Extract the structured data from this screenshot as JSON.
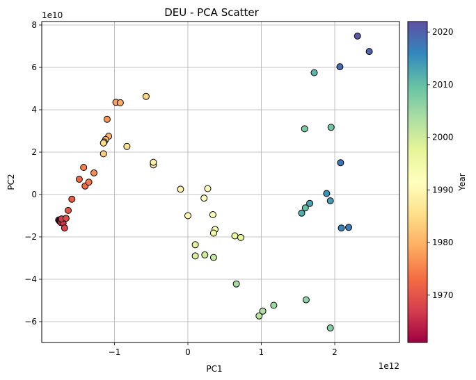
{
  "chart_data": {
    "type": "scatter",
    "title": "DEU - PCA Scatter",
    "xlabel": "PC1",
    "ylabel": "PC2",
    "x_offset_text": "1e12",
    "y_offset_text": "1e10",
    "xlim": [
      -1.9,
      2.6
    ],
    "ylim": [
      -7.0,
      8.2
    ],
    "x_ticks": [
      -1,
      0,
      1,
      2
    ],
    "y_ticks": [
      -6,
      -4,
      -2,
      0,
      2,
      4,
      6,
      8
    ],
    "grid": true,
    "colorbar": {
      "label": "Year",
      "range": [
        1961,
        2022
      ],
      "ticks": [
        1970,
        1980,
        1990,
        2000,
        2010,
        2020
      ],
      "colormap": "Spectral"
    },
    "points": [
      {
        "x": -1.76,
        "y": -1.2,
        "year": 1961
      },
      {
        "x": -1.75,
        "y": -1.25,
        "year": 1962
      },
      {
        "x": -1.74,
        "y": -1.28,
        "year": 1963
      },
      {
        "x": -1.72,
        "y": -1.3,
        "year": 1964
      },
      {
        "x": -1.73,
        "y": -1.32,
        "year": 1965
      },
      {
        "x": -1.7,
        "y": -1.35,
        "year": 1966
      },
      {
        "x": -1.72,
        "y": -1.15,
        "year": 1967
      },
      {
        "x": -1.68,
        "y": -1.58,
        "year": 1968
      },
      {
        "x": -1.66,
        "y": -1.12,
        "year": 1969
      },
      {
        "x": -1.63,
        "y": -0.75,
        "year": 1970
      },
      {
        "x": -1.58,
        "y": -0.22,
        "year": 1971
      },
      {
        "x": -1.48,
        "y": 0.72,
        "year": 1972
      },
      {
        "x": -1.4,
        "y": 0.4,
        "year": 1973
      },
      {
        "x": -1.35,
        "y": 0.58,
        "year": 1974
      },
      {
        "x": -1.42,
        "y": 1.28,
        "year": 1975
      },
      {
        "x": -1.28,
        "y": 1.02,
        "year": 1976
      },
      {
        "x": -1.1,
        "y": 3.55,
        "year": 1977
      },
      {
        "x": -0.98,
        "y": 4.35,
        "year": 1978
      },
      {
        "x": -0.92,
        "y": 4.33,
        "year": 1979
      },
      {
        "x": -1.08,
        "y": 2.75,
        "year": 1980
      },
      {
        "x": -1.12,
        "y": 2.6,
        "year": 1981
      },
      {
        "x": -1.14,
        "y": 2.48,
        "year": 1982
      },
      {
        "x": -1.15,
        "y": 1.92,
        "year": 1983
      },
      {
        "x": -0.57,
        "y": 4.63,
        "year": 1984
      },
      {
        "x": -1.15,
        "y": 2.43,
        "year": 1985
      },
      {
        "x": -0.83,
        "y": 2.27,
        "year": 1986
      },
      {
        "x": -0.47,
        "y": 1.4,
        "year": 1987
      },
      {
        "x": -0.47,
        "y": 1.52,
        "year": 1988
      },
      {
        "x": -0.1,
        "y": 0.25,
        "year": 1989
      },
      {
        "x": 0.0,
        "y": -1.0,
        "year": 1990
      },
      {
        "x": 0.27,
        "y": 0.28,
        "year": 1991
      },
      {
        "x": 0.22,
        "y": -0.17,
        "year": 1992
      },
      {
        "x": 0.34,
        "y": -0.95,
        "year": 1993
      },
      {
        "x": 0.37,
        "y": -1.65,
        "year": 1994
      },
      {
        "x": 0.35,
        "y": -1.82,
        "year": 1995
      },
      {
        "x": 0.64,
        "y": -1.95,
        "year": 1996
      },
      {
        "x": 0.72,
        "y": -2.03,
        "year": 1997
      },
      {
        "x": 0.1,
        "y": -2.37,
        "year": 1998
      },
      {
        "x": 0.1,
        "y": -2.9,
        "year": 1999
      },
      {
        "x": 0.23,
        "y": -2.85,
        "year": 2000
      },
      {
        "x": 0.35,
        "y": -2.97,
        "year": 2001
      },
      {
        "x": 0.97,
        "y": -5.73,
        "year": 2002
      },
      {
        "x": 1.02,
        "y": -5.5,
        "year": 2003
      },
      {
        "x": 0.66,
        "y": -4.22,
        "year": 2004
      },
      {
        "x": 1.17,
        "y": -5.23,
        "year": 2005
      },
      {
        "x": 1.61,
        "y": -4.97,
        "year": 2006
      },
      {
        "x": 1.94,
        "y": -6.3,
        "year": 2007
      },
      {
        "x": 1.59,
        "y": 3.1,
        "year": 2008
      },
      {
        "x": 1.95,
        "y": 3.17,
        "year": 2009
      },
      {
        "x": 1.6,
        "y": -0.63,
        "year": 2010
      },
      {
        "x": 1.72,
        "y": 5.75,
        "year": 2011
      },
      {
        "x": 1.55,
        "y": -0.88,
        "year": 2012
      },
      {
        "x": 1.66,
        "y": -0.42,
        "year": 2013
      },
      {
        "x": 1.94,
        "y": -0.3,
        "year": 2014
      },
      {
        "x": 1.89,
        "y": 0.05,
        "year": 2015
      },
      {
        "x": 2.09,
        "y": -1.58,
        "year": 2016
      },
      {
        "x": 2.19,
        "y": -1.55,
        "year": 2017
      },
      {
        "x": 2.08,
        "y": 1.5,
        "year": 2018
      },
      {
        "x": 2.07,
        "y": 6.03,
        "year": 2019
      },
      {
        "x": 2.47,
        "y": 6.75,
        "year": 2020
      },
      {
        "x": 2.31,
        "y": 7.48,
        "year": 2021
      }
    ]
  }
}
